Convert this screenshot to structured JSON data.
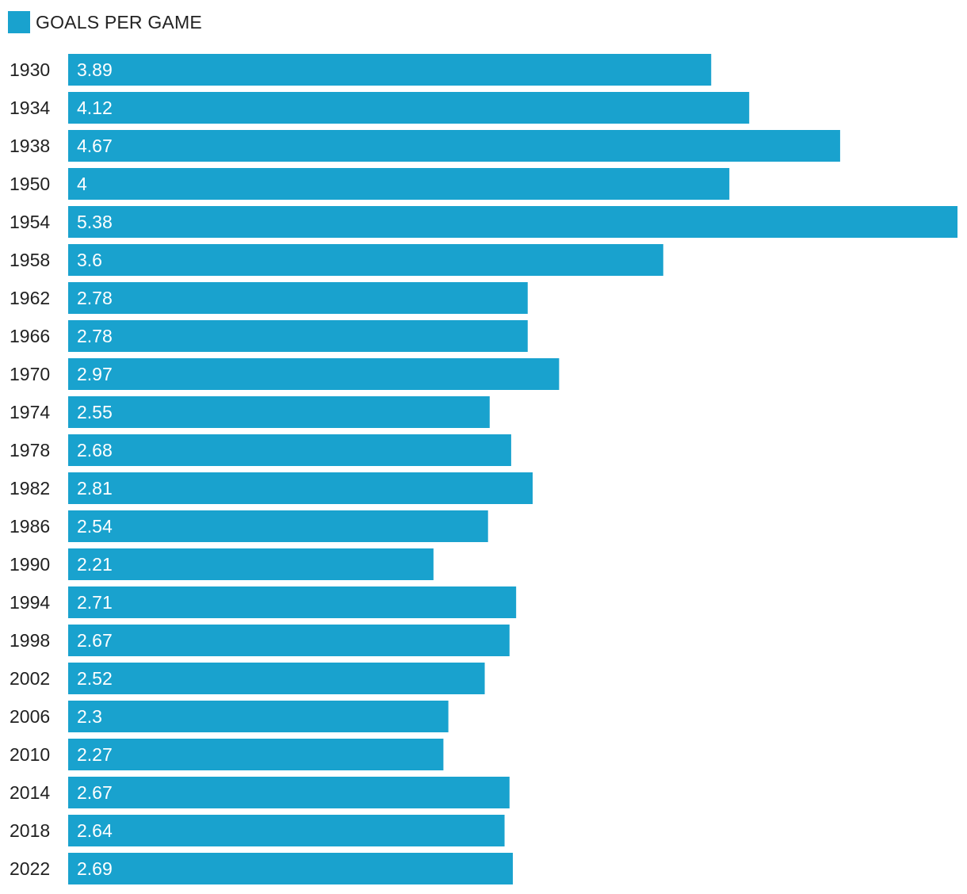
{
  "legend": {
    "label": "GOALS PER GAME",
    "color": "#19a2ce"
  },
  "chart_data": {
    "type": "bar",
    "orientation": "horizontal",
    "categories": [
      "1930",
      "1934",
      "1938",
      "1950",
      "1954",
      "1958",
      "1962",
      "1966",
      "1970",
      "1974",
      "1978",
      "1982",
      "1986",
      "1990",
      "1994",
      "1998",
      "2002",
      "2006",
      "2010",
      "2014",
      "2018",
      "2022"
    ],
    "series": [
      {
        "name": "GOALS PER GAME",
        "color": "#19a2ce",
        "values": [
          3.89,
          4.12,
          4.67,
          4,
          5.38,
          3.6,
          2.78,
          2.78,
          2.97,
          2.55,
          2.68,
          2.81,
          2.54,
          2.21,
          2.71,
          2.67,
          2.52,
          2.3,
          2.27,
          2.67,
          2.64,
          2.69
        ]
      }
    ],
    "value_labels": [
      "3.89",
      "4.12",
      "4.67",
      "4",
      "5.38",
      "3.6",
      "2.78",
      "2.78",
      "2.97",
      "2.55",
      "2.68",
      "2.81",
      "2.54",
      "2.21",
      "2.71",
      "2.67",
      "2.52",
      "2.3",
      "2.27",
      "2.67",
      "2.64",
      "2.69"
    ],
    "xlim": [
      0,
      5.38
    ],
    "grid": false,
    "legend_position": "top-left"
  }
}
